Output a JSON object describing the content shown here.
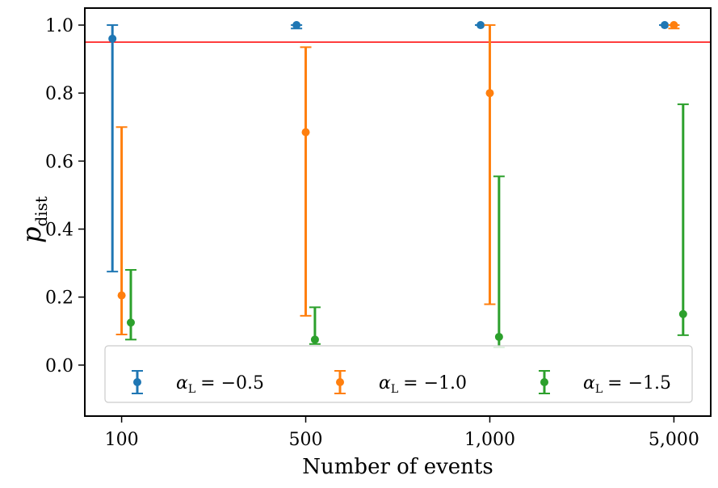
{
  "chart_data": {
    "type": "scatter",
    "subtype": "errorbar",
    "xlabel": "Number of events",
    "ylabel": "p",
    "ylabel_subscript": "dist",
    "categories": [
      "100",
      "500",
      "1,000",
      "5,000"
    ],
    "ylim": [
      -0.15,
      1.05
    ],
    "yticks": [
      "0.0",
      "0.2",
      "0.4",
      "0.6",
      "0.8",
      "1.0"
    ],
    "grid": false,
    "legend_placement": "bottom",
    "reference_line": {
      "y": 0.95,
      "color": "#ff0000"
    },
    "series": [
      {
        "name": "α_L = −0.5",
        "label_symbol": "α",
        "label_sub": "L",
        "label_value": "= −0.5",
        "color": "#1f77b4",
        "values": [
          0.96,
          1.0,
          1.0,
          1.0
        ],
        "lower": [
          0.275,
          0.99,
          1.0,
          1.0
        ],
        "upper": [
          1.0,
          1.0,
          1.0,
          1.0
        ]
      },
      {
        "name": "α_L = −1.0",
        "label_symbol": "α",
        "label_sub": "L",
        "label_value": "= −1.0",
        "color": "#ff7f0e",
        "values": [
          0.205,
          0.685,
          0.8,
          1.0
        ],
        "lower": [
          0.09,
          0.145,
          0.179,
          0.99
        ],
        "upper": [
          0.7,
          0.935,
          1.0,
          1.0
        ]
      },
      {
        "name": "α_L = −1.5",
        "label_symbol": "α",
        "label_sub": "L",
        "label_value": "= −1.5",
        "color": "#2ca02c",
        "values": [
          0.125,
          0.075,
          0.083,
          0.15
        ],
        "lower": [
          0.075,
          0.062,
          0.052,
          0.088
        ],
        "upper": [
          0.28,
          0.17,
          0.555,
          0.767
        ]
      }
    ]
  }
}
